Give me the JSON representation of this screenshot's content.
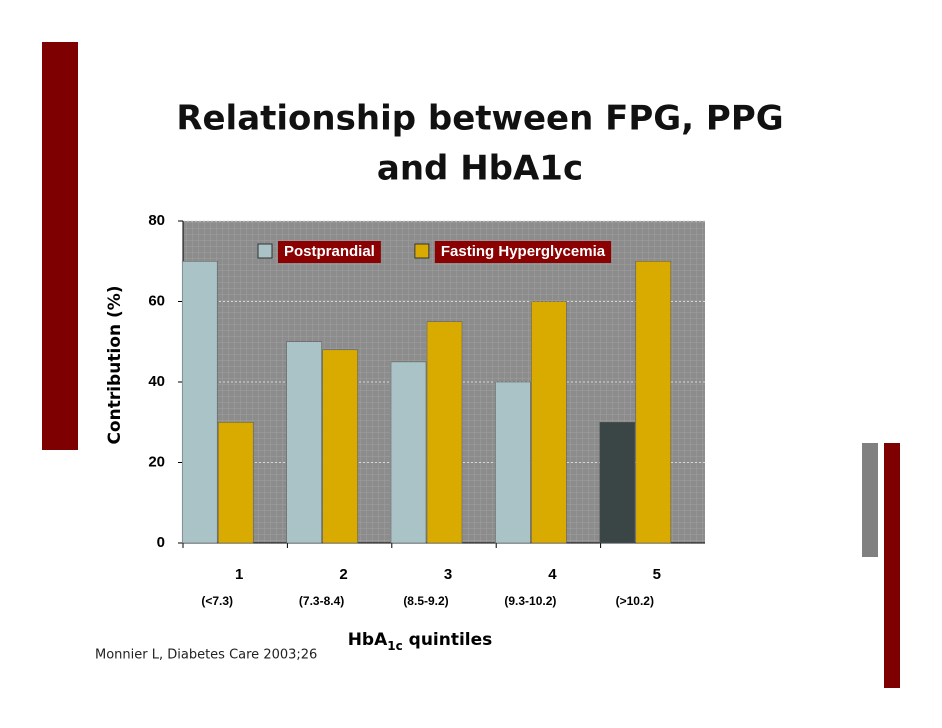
{
  "chart_data": {
    "type": "bar",
    "title_lines": [
      "Relationship between FPG, PPG",
      "and HbA1c"
    ],
    "y_label": "Contribution (%)",
    "x_label": {
      "main": "HbA",
      "sub": "1c",
      "rest": " quintiles"
    },
    "categories": [
      "1",
      "2",
      "3",
      "4",
      "5"
    ],
    "category_ranges": [
      "(<7.3)",
      "(7.3-8.4)",
      "(8.5-9.2)",
      "(9.3-10.2)",
      "(>10.2)"
    ],
    "series": [
      {
        "name": "Postprandial",
        "color": "#a9c3c6",
        "colors": [
          "#a9c3c6",
          "#a9c3c6",
          "#a9c3c6",
          "#a9c3c6",
          "#3a4646"
        ],
        "values": [
          70,
          50,
          45,
          40,
          30
        ]
      },
      {
        "name": "Fasting Hyperglycemia",
        "color": "#d9ab00",
        "values": [
          30,
          48,
          55,
          60,
          70
        ]
      }
    ],
    "ylim": [
      0,
      80
    ],
    "yticks": [
      0,
      20,
      40,
      60,
      80
    ],
    "grid": true,
    "legend": "top",
    "source": "Monnier L, Diabetes Care 2003;26"
  }
}
